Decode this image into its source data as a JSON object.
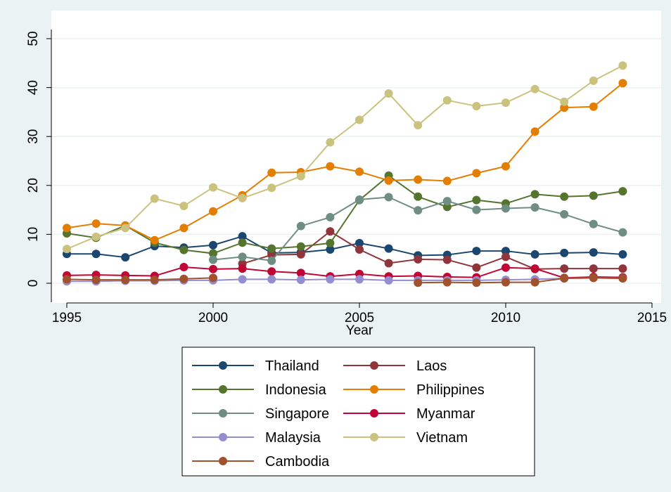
{
  "chart_data": {
    "type": "line",
    "title": "",
    "xlabel": "Year",
    "ylabel": "",
    "xlim": [
      1995,
      2015
    ],
    "ylim": [
      0,
      50
    ],
    "x_ticks": [
      "1995",
      "2000",
      "2005",
      "2010",
      "2015"
    ],
    "y_ticks": [
      "0",
      "10",
      "20",
      "30",
      "40",
      "50"
    ],
    "grid": true,
    "legend_position": "bottom",
    "series": [
      {
        "name": "Thailand",
        "color": "#1a476f",
        "x": [
          1995,
          1996,
          1997,
          1998,
          1999,
          2000,
          2001,
          2002,
          2003,
          2004,
          2005,
          2006,
          2007,
          2008,
          2009,
          2010,
          2011,
          2012,
          2013,
          2014
        ],
        "values": [
          6.0,
          6.0,
          5.3,
          7.6,
          7.3,
          7.8,
          9.6,
          6.2,
          6.3,
          6.9,
          8.2,
          7.1,
          5.7,
          5.8,
          6.6,
          6.6,
          5.9,
          6.2,
          6.3,
          5.9
        ]
      },
      {
        "name": "Laos",
        "color": "#90353b",
        "x": [
          2001,
          2002,
          2003,
          2004,
          2005,
          2006,
          2007,
          2008,
          2009,
          2010,
          2011,
          2012,
          2013,
          2014
        ],
        "values": [
          4.0,
          5.8,
          5.9,
          10.6,
          6.9,
          4.1,
          4.9,
          4.8,
          3.2,
          5.4,
          2.9,
          3.0,
          3.0,
          3.0
        ]
      },
      {
        "name": "Indonesia",
        "color": "#55752f",
        "x": [
          1995,
          1996,
          1997,
          1998,
          1999,
          2000,
          2001,
          2002,
          2003,
          2004,
          2005,
          2006,
          2007,
          2008,
          2009,
          2010,
          2011,
          2012,
          2013,
          2014
        ],
        "values": [
          10.2,
          9.3,
          11.8,
          8.3,
          6.8,
          6.1,
          8.3,
          7.1,
          7.5,
          8.2,
          17.0,
          22.0,
          17.7,
          15.6,
          17.0,
          16.3,
          18.2,
          17.7,
          17.9,
          18.8
        ]
      },
      {
        "name": "Philippines",
        "color": "#e37e00",
        "x": [
          1995,
          1996,
          1997,
          1998,
          1999,
          2000,
          2001,
          2002,
          2003,
          2004,
          2005,
          2006,
          2007,
          2008,
          2009,
          2010,
          2011,
          2012,
          2013,
          2014
        ],
        "values": [
          11.3,
          12.2,
          11.8,
          8.8,
          11.3,
          14.7,
          18.0,
          22.6,
          22.7,
          23.9,
          22.8,
          21.0,
          21.2,
          20.9,
          22.5,
          23.9,
          31.0,
          35.9,
          36.1,
          40.9
        ]
      },
      {
        "name": "Singapore",
        "color": "#6e8e84",
        "x": [
          2000,
          2001,
          2002,
          2003,
          2004,
          2005,
          2006,
          2007,
          2008,
          2009,
          2010,
          2011,
          2012,
          2013,
          2014
        ],
        "values": [
          4.8,
          5.4,
          4.6,
          11.7,
          13.5,
          17.1,
          17.6,
          14.9,
          16.8,
          15.0,
          15.3,
          15.5,
          14.1,
          12.1,
          10.4
        ]
      },
      {
        "name": "Myanmar",
        "color": "#c10534",
        "x": [
          1995,
          1996,
          1997,
          1998,
          1999,
          2000,
          2001,
          2002,
          2003,
          2004,
          2005,
          2006,
          2007,
          2008,
          2009,
          2010,
          2011,
          2012,
          2013,
          2014
        ],
        "values": [
          1.6,
          1.7,
          1.6,
          1.5,
          3.3,
          2.9,
          3.0,
          2.4,
          2.1,
          1.4,
          1.9,
          1.4,
          1.5,
          1.3,
          1.2,
          3.2,
          3.0,
          1.1,
          1.3,
          1.2
        ]
      },
      {
        "name": "Malaysia",
        "color": "#938dd2",
        "x": [
          1995,
          1996,
          1997,
          1998,
          1999,
          2000,
          2001,
          2002,
          2003,
          2004,
          2005,
          2006,
          2007,
          2008,
          2009,
          2010,
          2011,
          2012,
          2013,
          2014
        ],
        "values": [
          0.4,
          0.4,
          0.5,
          0.5,
          0.6,
          0.6,
          0.8,
          0.8,
          0.7,
          0.8,
          0.8,
          0.6,
          0.6,
          0.6,
          0.6,
          0.7,
          0.8,
          1.0,
          1.1,
          1.0
        ]
      },
      {
        "name": "Vietnam",
        "color": "#cac27e",
        "x": [
          1995,
          1996,
          1997,
          1998,
          1999,
          2000,
          2001,
          2002,
          2003,
          2004,
          2005,
          2006,
          2007,
          2008,
          2009,
          2010,
          2011,
          2012,
          2013,
          2014
        ],
        "values": [
          7.0,
          9.5,
          11.3,
          17.3,
          15.8,
          19.6,
          17.4,
          19.5,
          21.9,
          28.8,
          33.4,
          38.8,
          32.3,
          37.4,
          36.2,
          36.9,
          39.7,
          37.1,
          41.4,
          44.5
        ]
      },
      {
        "name": "Cambodia",
        "color": "#a0522d",
        "x": [
          1995,
          1996,
          1997,
          1998,
          1999,
          2000,
          2001,
          2002,
          2003,
          2004,
          2005,
          2006,
          2007,
          2008,
          2009,
          2010,
          2011,
          2012,
          2013,
          2014
        ],
        "values": [
          0.8,
          0.7,
          0.7,
          0.7,
          0.9,
          1.1,
          null,
          null,
          null,
          null,
          null,
          null,
          0.1,
          0.2,
          0.1,
          0.2,
          0.2,
          1.0,
          1.1,
          1.0
        ]
      }
    ]
  }
}
